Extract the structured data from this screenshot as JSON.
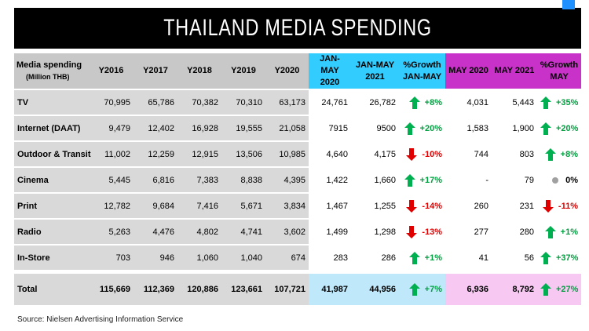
{
  "header": {
    "title": "THAILAND MEDIA SPENDING"
  },
  "table": {
    "columns": [
      {
        "lines": [
          "Media spending",
          "(Million THB)"
        ]
      },
      {
        "lines": [
          "Y2016"
        ]
      },
      {
        "lines": [
          "Y2017"
        ]
      },
      {
        "lines": [
          "Y2018"
        ]
      },
      {
        "lines": [
          "Y2019"
        ]
      },
      {
        "lines": [
          "Y2020"
        ]
      },
      {
        "lines": [
          "JAN-MAY",
          "2020"
        ]
      },
      {
        "lines": [
          "JAN-MAY",
          "2021"
        ]
      },
      {
        "lines": [
          "%Growth",
          "JAN-MAY"
        ]
      },
      {
        "lines": [
          "MAY 2020"
        ]
      },
      {
        "lines": [
          "MAY 2021"
        ]
      },
      {
        "lines": [
          "%Growth",
          "MAY"
        ]
      }
    ],
    "rows": [
      {
        "label": "TV",
        "values": [
          "70,995",
          "65,786",
          "70,382",
          "70,310",
          "63,173",
          "24,761",
          "26,782",
          {
            "text": "+8%",
            "trend": "up"
          },
          "4,031",
          "5,443",
          {
            "text": "+35%",
            "trend": "up"
          }
        ]
      },
      {
        "label": "Internet (DAAT)",
        "values": [
          "9,479",
          "12,402",
          "16,928",
          "19,555",
          "21,058",
          "7915",
          "9500",
          {
            "text": "+20%",
            "trend": "up"
          },
          "1,583",
          "1,900",
          {
            "text": "+20%",
            "trend": "up"
          }
        ]
      },
      {
        "label": "Outdoor & Transit",
        "values": [
          "11,002",
          "12,259",
          "12,915",
          "13,506",
          "10,985",
          "4,640",
          "4,175",
          {
            "text": "-10%",
            "trend": "down"
          },
          "744",
          "803",
          {
            "text": "+8%",
            "trend": "up"
          }
        ]
      },
      {
        "label": "Cinema",
        "values": [
          "5,445",
          "6,816",
          "7,383",
          "8,838",
          "4,395",
          "1,422",
          "1,660",
          {
            "text": "+17%",
            "trend": "up"
          },
          "-",
          "79",
          {
            "text": "0%",
            "trend": "neutral"
          }
        ]
      },
      {
        "label": "Print",
        "values": [
          "12,782",
          "9,684",
          "7,416",
          "5,671",
          "3,834",
          "1,467",
          "1,255",
          {
            "text": "-14%",
            "trend": "down"
          },
          "260",
          "231",
          {
            "text": "-11%",
            "trend": "down"
          }
        ]
      },
      {
        "label": "Radio",
        "values": [
          "5,263",
          "4,476",
          "4,802",
          "4,741",
          "3,602",
          "1,499",
          "1,298",
          {
            "text": "-13%",
            "trend": "down"
          },
          "277",
          "280",
          {
            "text": "+1%",
            "trend": "up"
          }
        ]
      },
      {
        "label": "In-Store",
        "values": [
          "703",
          "946",
          "1,060",
          "1,040",
          "674",
          "283",
          "286",
          {
            "text": "+1%",
            "trend": "up"
          },
          "41",
          "56",
          {
            "text": "+37%",
            "trend": "up"
          }
        ]
      }
    ],
    "total": {
      "label": "Total",
      "values": [
        "115,669",
        "112,369",
        "120,886",
        "123,661",
        "107,721",
        "41,987",
        "44,956",
        {
          "text": "+7%",
          "trend": "up"
        },
        "6,936",
        "8,792",
        {
          "text": "+27%",
          "trend": "up"
        }
      ]
    }
  },
  "footer": {
    "source": "Source: Nielsen Advertising Information Service"
  }
}
